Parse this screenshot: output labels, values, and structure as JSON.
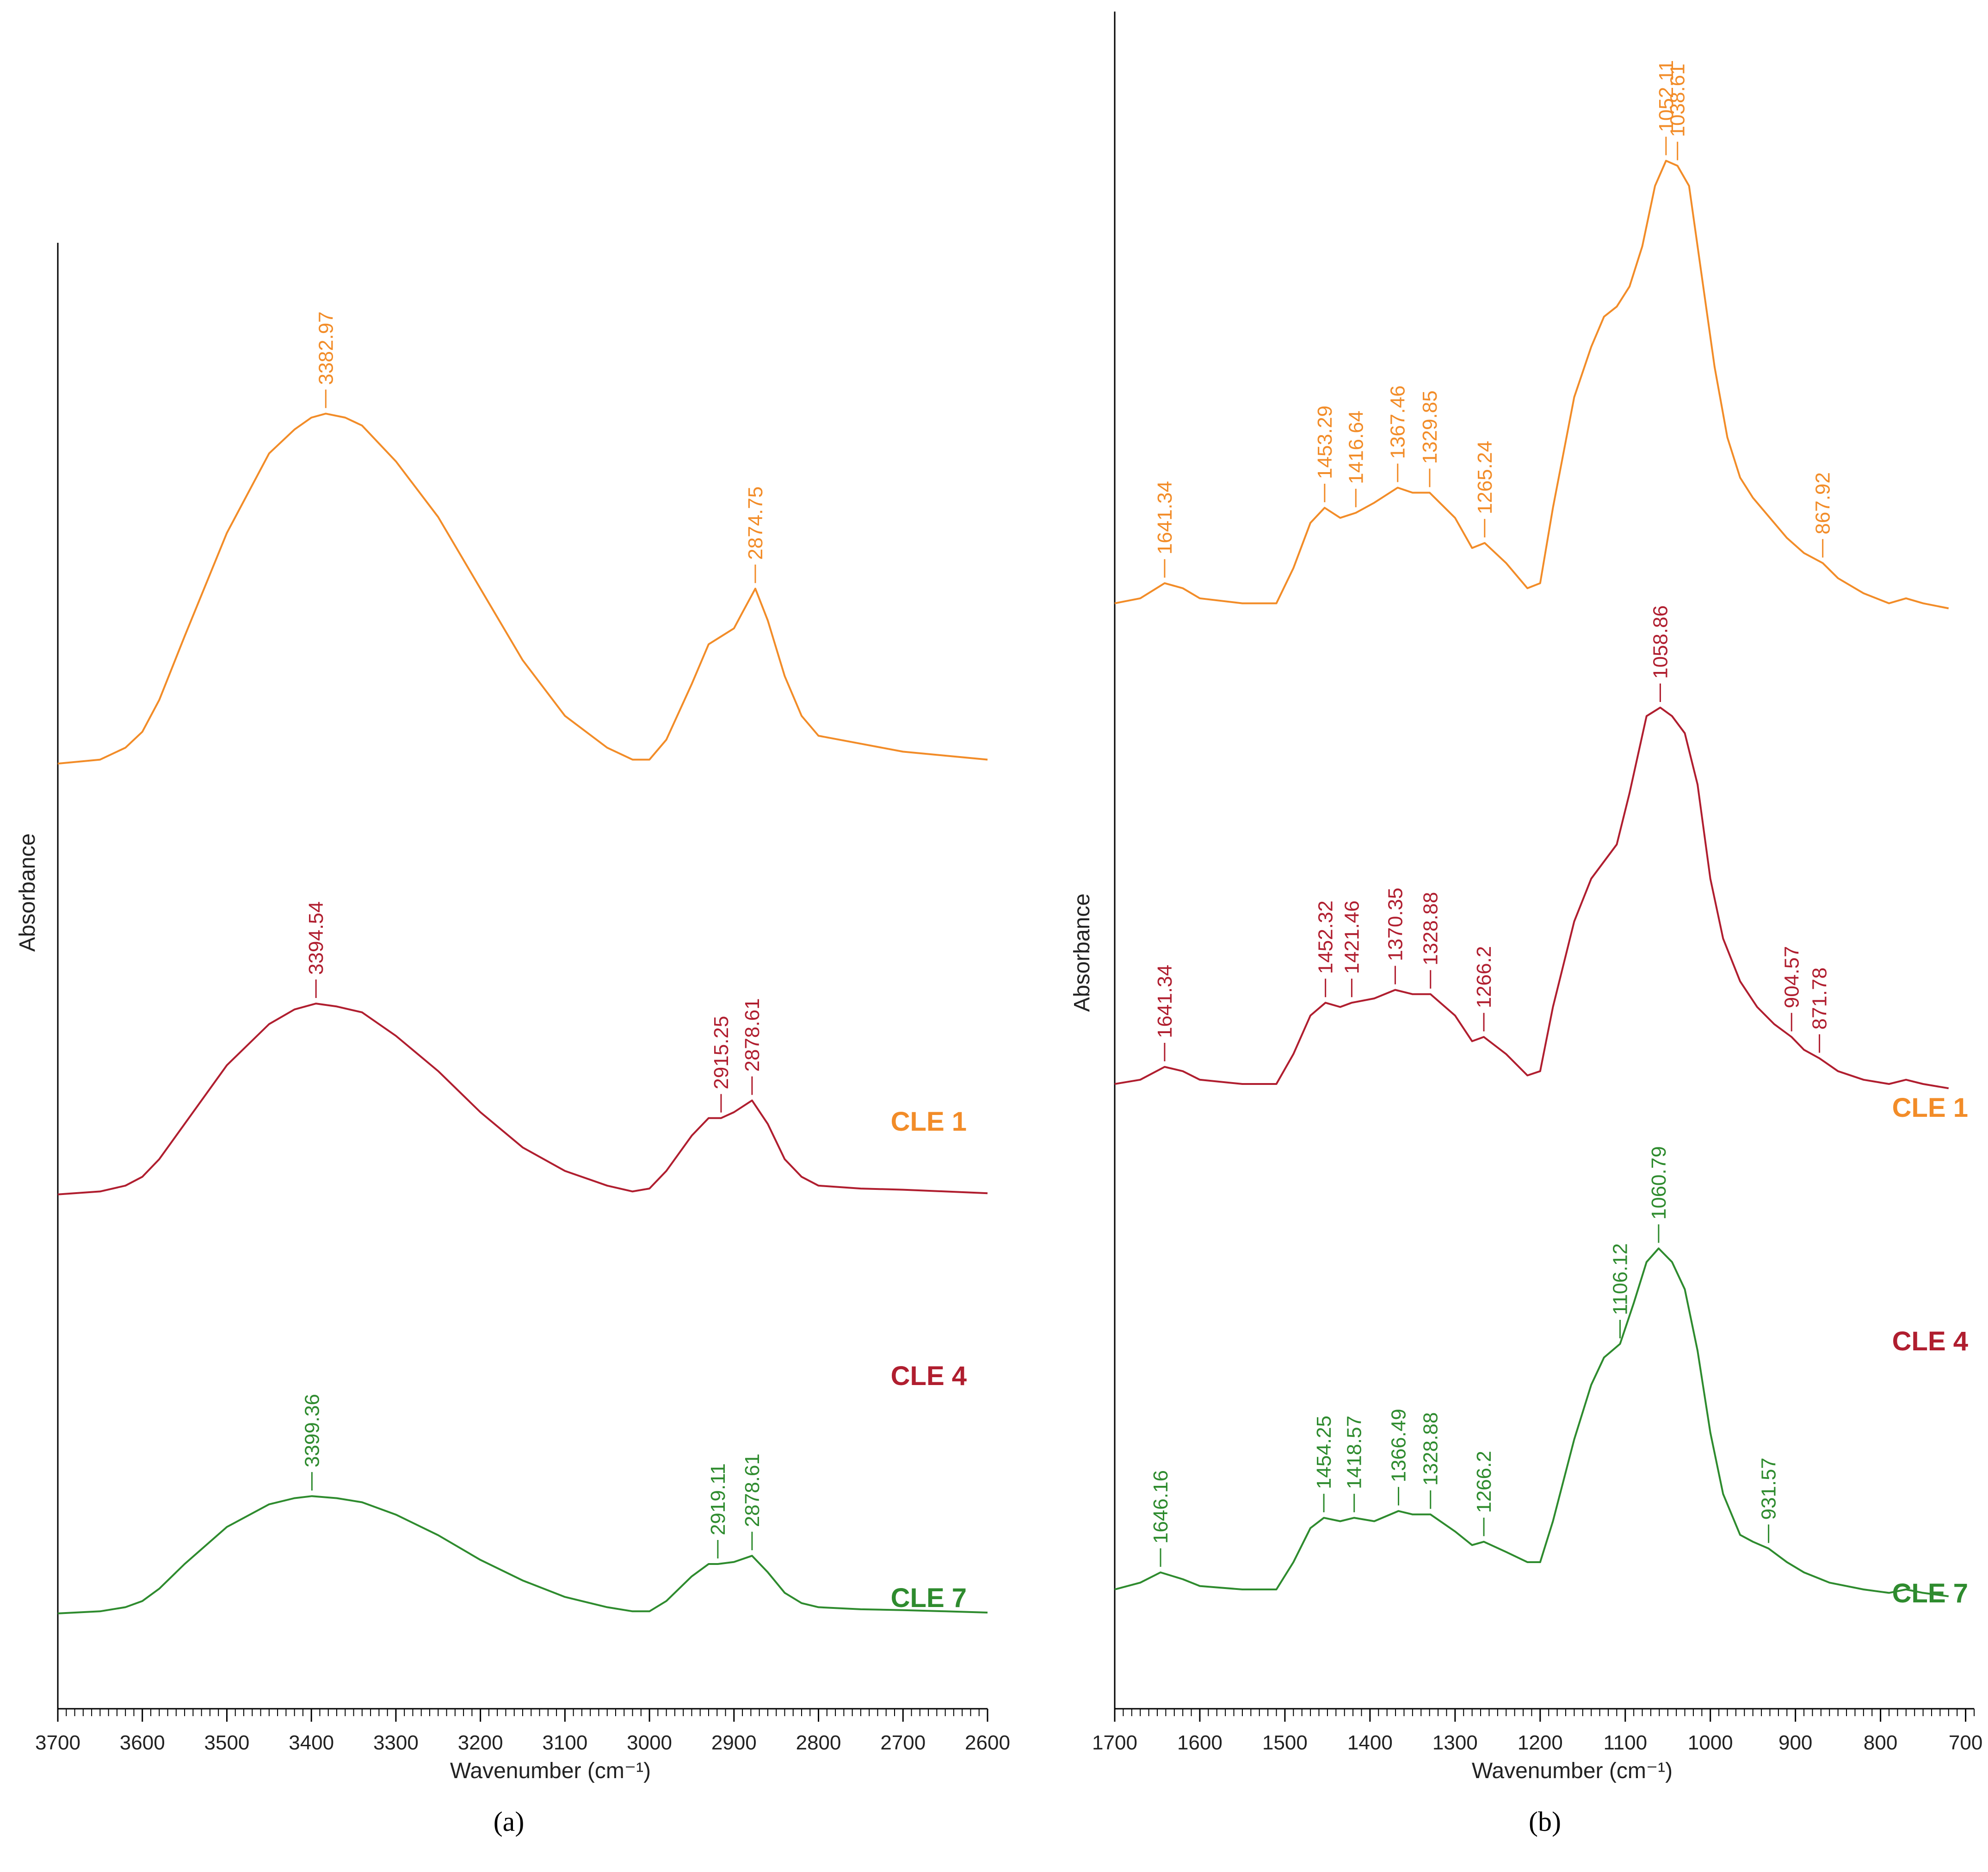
{
  "figure": {
    "panel_a_label": "(a)",
    "panel_b_label": "(b)"
  },
  "colors": {
    "CLE 1": "#f28c28",
    "CLE 4": "#b01e2f",
    "CLE 7": "#2e8b2e",
    "axis": "#000000"
  },
  "chart_data": [
    {
      "type": "line",
      "panel": "a",
      "title": "",
      "xlabel": "Wavenumber (cm⁻¹)",
      "ylabel": "Absorbance",
      "xlim": [
        3700,
        2600
      ],
      "x_reversed": true,
      "ylim": [
        0,
        1
      ],
      "grid": false,
      "x_ticks": [
        3700,
        3600,
        3500,
        3400,
        3300,
        3200,
        3100,
        3000,
        2900,
        2800,
        2700,
        2600
      ],
      "series": [
        {
          "name": "CLE 1",
          "label": "CLE 1",
          "x": [
            3700,
            3650,
            3620,
            3600,
            3580,
            3550,
            3500,
            3450,
            3420,
            3400,
            3382.97,
            3360,
            3340,
            3300,
            3250,
            3200,
            3150,
            3100,
            3050,
            3020,
            3000,
            2980,
            2950,
            2930,
            2915,
            2900,
            2890,
            2874.75,
            2860,
            2840,
            2820,
            2800,
            2750,
            2700,
            2650,
            2600
          ],
          "y": [
            0.54,
            0.545,
            0.56,
            0.58,
            0.62,
            0.7,
            0.83,
            0.93,
            0.96,
            0.975,
            0.98,
            0.975,
            0.965,
            0.92,
            0.85,
            0.76,
            0.67,
            0.6,
            0.56,
            0.545,
            0.545,
            0.57,
            0.64,
            0.69,
            0.7,
            0.71,
            0.73,
            0.76,
            0.72,
            0.65,
            0.6,
            0.575,
            0.565,
            0.555,
            0.55,
            0.545
          ]
        },
        {
          "name": "CLE 4",
          "label": "CLE 4",
          "x": [
            3700,
            3650,
            3620,
            3600,
            3580,
            3550,
            3500,
            3450,
            3420,
            3394.54,
            3370,
            3340,
            3300,
            3250,
            3200,
            3150,
            3100,
            3050,
            3020,
            3000,
            2980,
            2950,
            2930,
            2915.25,
            2900,
            2878.61,
            2860,
            2840,
            2820,
            2800,
            2750,
            2700,
            2650,
            2600
          ],
          "y": [
            0.36,
            0.365,
            0.375,
            0.39,
            0.42,
            0.48,
            0.58,
            0.65,
            0.675,
            0.685,
            0.68,
            0.67,
            0.63,
            0.57,
            0.5,
            0.44,
            0.4,
            0.375,
            0.365,
            0.37,
            0.4,
            0.46,
            0.49,
            0.49,
            0.5,
            0.52,
            0.48,
            0.42,
            0.39,
            0.375,
            0.37,
            0.368,
            0.365,
            0.362
          ]
        },
        {
          "name": "CLE 7",
          "label": "CLE 7",
          "x": [
            3700,
            3650,
            3620,
            3600,
            3580,
            3550,
            3500,
            3450,
            3420,
            3399.36,
            3370,
            3340,
            3300,
            3250,
            3200,
            3150,
            3100,
            3050,
            3020,
            3000,
            2980,
            2950,
            2930,
            2919.11,
            2900,
            2878.61,
            2860,
            2840,
            2820,
            2800,
            2750,
            2700,
            2650,
            2600
          ],
          "y": [
            0.08,
            0.085,
            0.095,
            0.11,
            0.14,
            0.2,
            0.29,
            0.345,
            0.36,
            0.365,
            0.36,
            0.35,
            0.32,
            0.27,
            0.21,
            0.16,
            0.12,
            0.095,
            0.085,
            0.085,
            0.11,
            0.17,
            0.2,
            0.2,
            0.205,
            0.22,
            0.18,
            0.13,
            0.105,
            0.095,
            0.09,
            0.088,
            0.085,
            0.082
          ]
        }
      ],
      "annotations": [
        {
          "series": "CLE 1",
          "x": 3382.97,
          "text": "3382.97"
        },
        {
          "series": "CLE 1",
          "x": 2874.75,
          "text": "2874.75"
        },
        {
          "series": "CLE 4",
          "x": 3394.54,
          "text": "3394.54"
        },
        {
          "series": "CLE 4",
          "x": 2915.25,
          "text": "2915.25"
        },
        {
          "series": "CLE 4",
          "x": 2878.61,
          "text": "2878.61"
        },
        {
          "series": "CLE 7",
          "x": 3399.36,
          "text": "3399.36"
        },
        {
          "series": "CLE 7",
          "x": 2919.11,
          "text": "2919.11"
        },
        {
          "series": "CLE 7",
          "x": 2878.61,
          "text": "2878.61"
        }
      ]
    },
    {
      "type": "line",
      "panel": "b",
      "title": "",
      "xlabel": "Wavenumber (cm⁻¹)",
      "ylabel": "Absorbance",
      "xlim": [
        1700,
        690
      ],
      "x_reversed": true,
      "ylim": [
        0,
        1
      ],
      "grid": false,
      "x_ticks": [
        1700,
        1600,
        1500,
        1400,
        1300,
        1200,
        1100,
        1000,
        900,
        800,
        700
      ],
      "series": [
        {
          "name": "CLE 1",
          "label": "CLE 1",
          "x": [
            1700,
            1670,
            1641.34,
            1620,
            1600,
            1550,
            1510,
            1490,
            1470,
            1453.29,
            1435,
            1416.64,
            1395,
            1367.46,
            1350,
            1329.85,
            1300,
            1280,
            1265.24,
            1240,
            1215,
            1200,
            1185,
            1160,
            1140,
            1125,
            1110,
            1095,
            1080,
            1065,
            1052.11,
            1038.61,
            1025,
            1010,
            995,
            980,
            965,
            950,
            930,
            910,
            890,
            867.92,
            850,
            820,
            790,
            770,
            750,
            720
          ],
          "y": [
            0.545,
            0.55,
            0.565,
            0.56,
            0.55,
            0.545,
            0.545,
            0.58,
            0.625,
            0.64,
            0.63,
            0.635,
            0.645,
            0.66,
            0.655,
            0.655,
            0.63,
            0.6,
            0.605,
            0.585,
            0.56,
            0.565,
            0.64,
            0.75,
            0.8,
            0.83,
            0.84,
            0.86,
            0.9,
            0.96,
            0.985,
            0.98,
            0.96,
            0.87,
            0.78,
            0.71,
            0.67,
            0.65,
            0.63,
            0.61,
            0.595,
            0.585,
            0.57,
            0.555,
            0.545,
            0.55,
            0.545,
            0.54
          ]
        },
        {
          "name": "CLE 4",
          "label": "CLE 4",
          "x": [
            1700,
            1670,
            1641.34,
            1620,
            1600,
            1550,
            1510,
            1490,
            1470,
            1452.32,
            1435,
            1421.46,
            1395,
            1370.35,
            1350,
            1328.88,
            1300,
            1280,
            1266.2,
            1240,
            1215,
            1200,
            1185,
            1160,
            1140,
            1125,
            1110,
            1095,
            1075,
            1058.86,
            1045,
            1030,
            1015,
            1000,
            985,
            965,
            945,
            925,
            904.57,
            890,
            871.78,
            850,
            820,
            790,
            770,
            750,
            720
          ],
          "y": [
            0.36,
            0.365,
            0.38,
            0.375,
            0.365,
            0.36,
            0.36,
            0.395,
            0.44,
            0.455,
            0.45,
            0.455,
            0.46,
            0.47,
            0.465,
            0.465,
            0.44,
            0.41,
            0.415,
            0.395,
            0.37,
            0.375,
            0.45,
            0.55,
            0.6,
            0.62,
            0.64,
            0.7,
            0.79,
            0.8,
            0.79,
            0.77,
            0.71,
            0.6,
            0.53,
            0.48,
            0.45,
            0.43,
            0.415,
            0.4,
            0.39,
            0.375,
            0.365,
            0.36,
            0.365,
            0.36,
            0.355
          ]
        },
        {
          "name": "CLE 7",
          "label": "CLE 7",
          "x": [
            1700,
            1670,
            1646.16,
            1620,
            1600,
            1550,
            1510,
            1490,
            1470,
            1454.25,
            1435,
            1418.57,
            1395,
            1366.49,
            1350,
            1328.88,
            1300,
            1280,
            1266.2,
            1240,
            1215,
            1200,
            1185,
            1160,
            1140,
            1125,
            1106.12,
            1090,
            1075,
            1060.79,
            1045,
            1030,
            1015,
            1000,
            985,
            965,
            950,
            931.57,
            910,
            890,
            860,
            820,
            790,
            770,
            750,
            720
          ],
          "y": [
            0.08,
            0.09,
            0.105,
            0.095,
            0.085,
            0.08,
            0.08,
            0.12,
            0.17,
            0.185,
            0.18,
            0.185,
            0.18,
            0.195,
            0.19,
            0.19,
            0.165,
            0.145,
            0.15,
            0.135,
            0.12,
            0.12,
            0.18,
            0.3,
            0.38,
            0.42,
            0.44,
            0.5,
            0.56,
            0.58,
            0.56,
            0.52,
            0.43,
            0.31,
            0.22,
            0.16,
            0.15,
            0.14,
            0.12,
            0.105,
            0.09,
            0.08,
            0.075,
            0.08,
            0.075,
            0.07
          ]
        }
      ],
      "annotations": [
        {
          "series": "CLE 1",
          "x": 1641.34,
          "text": "1641.34"
        },
        {
          "series": "CLE 1",
          "x": 1453.29,
          "text": "1453.29"
        },
        {
          "series": "CLE 1",
          "x": 1416.64,
          "text": "1416.64"
        },
        {
          "series": "CLE 1",
          "x": 1367.46,
          "text": "1367.46"
        },
        {
          "series": "CLE 1",
          "x": 1329.85,
          "text": "1329.85"
        },
        {
          "series": "CLE 1",
          "x": 1265.24,
          "text": "1265.24"
        },
        {
          "series": "CLE 1",
          "x": 1052.11,
          "text": "1052.11"
        },
        {
          "series": "CLE 1",
          "x": 1038.61,
          "text": "1038.61"
        },
        {
          "series": "CLE 1",
          "x": 867.92,
          "text": "867.92"
        },
        {
          "series": "CLE 4",
          "x": 1641.34,
          "text": "1641.34"
        },
        {
          "series": "CLE 4",
          "x": 1452.32,
          "text": "1452.32"
        },
        {
          "series": "CLE 4",
          "x": 1421.46,
          "text": "1421.46"
        },
        {
          "series": "CLE 4",
          "x": 1370.35,
          "text": "1370.35"
        },
        {
          "series": "CLE 4",
          "x": 1328.88,
          "text": "1328.88"
        },
        {
          "series": "CLE 4",
          "x": 1266.2,
          "text": "1266.2"
        },
        {
          "series": "CLE 4",
          "x": 1058.86,
          "text": "1058.86"
        },
        {
          "series": "CLE 4",
          "x": 904.57,
          "text": "904.57"
        },
        {
          "series": "CLE 4",
          "x": 871.78,
          "text": "871.78"
        },
        {
          "series": "CLE 7",
          "x": 1646.16,
          "text": "1646.16"
        },
        {
          "series": "CLE 7",
          "x": 1454.25,
          "text": "1454.25"
        },
        {
          "series": "CLE 7",
          "x": 1418.57,
          "text": "1418.57"
        },
        {
          "series": "CLE 7",
          "x": 1366.49,
          "text": "1366.49"
        },
        {
          "series": "CLE 7",
          "x": 1328.88,
          "text": "1328.88"
        },
        {
          "series": "CLE 7",
          "x": 1266.2,
          "text": "1266.2"
        },
        {
          "series": "CLE 7",
          "x": 1106.12,
          "text": "1106.12"
        },
        {
          "series": "CLE 7",
          "x": 1060.79,
          "text": "1060.79"
        },
        {
          "series": "CLE 7",
          "x": 931.57,
          "text": "931.57"
        }
      ]
    }
  ]
}
